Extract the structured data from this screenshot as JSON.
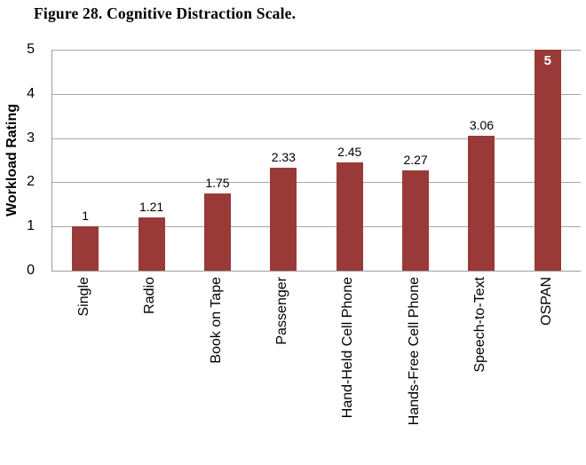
{
  "figure": {
    "caption": "Figure 28. Cognitive Distraction Scale."
  },
  "chart_data": {
    "type": "bar",
    "title": "Figure 28. Cognitive Distraction Scale.",
    "categories": [
      "Single",
      "Radio",
      "Book on Tape",
      "Passenger",
      "Hand-Held Cell Phone",
      "Hands-Free Cell Phone",
      "Speech-to-Text",
      "OSPAN"
    ],
    "values": [
      1,
      1.21,
      1.75,
      2.33,
      2.45,
      2.27,
      3.06,
      5
    ],
    "value_labels": [
      "1",
      "1.21",
      "1.75",
      "2.33",
      "2.45",
      "2.27",
      "3.06",
      "5"
    ],
    "label_inside": [
      false,
      false,
      false,
      false,
      false,
      false,
      false,
      true
    ],
    "xlabel": "",
    "ylabel": "Workload Rating",
    "ylim": [
      0,
      5
    ],
    "yticks": [
      0,
      1,
      2,
      3,
      4,
      5
    ],
    "grid": true,
    "legend": false,
    "bar_color": "#9a3a38",
    "gridline_color": "#a8a8a8",
    "axis_color": "#9c9c9c",
    "inside_label_color": "#ffffff",
    "label_color": "#000000"
  }
}
